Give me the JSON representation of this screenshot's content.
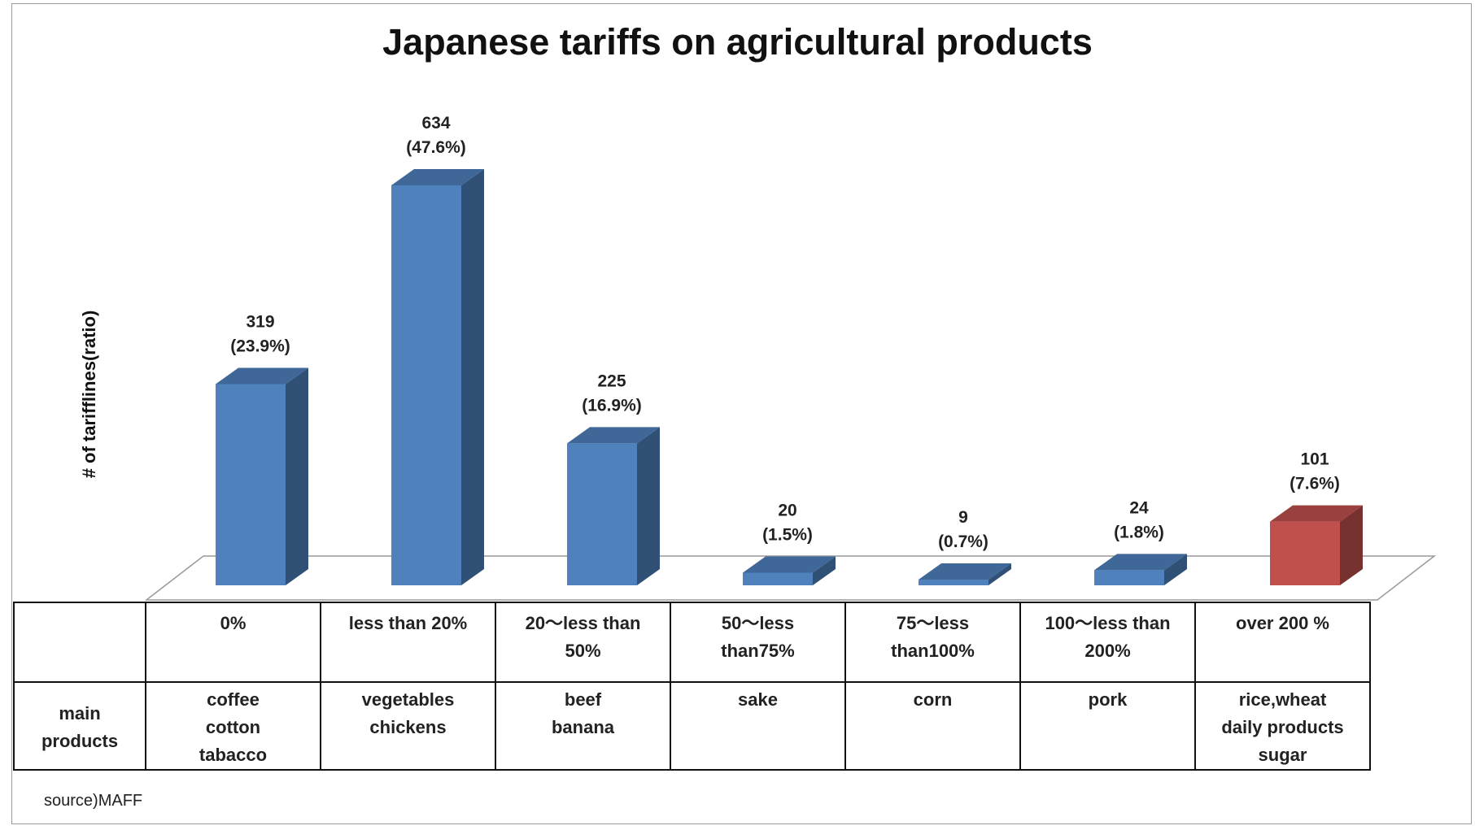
{
  "chart_data": {
    "type": "bar",
    "title": "Japanese tariffs on agricultural products",
    "ylabel": "# of tarifflines(ratio)",
    "categories": [
      "0%",
      "less than 20%",
      "20～less than 50%",
      "50～less than75%",
      "75～less than100%",
      "100～less than 200%",
      "over 200 %"
    ],
    "values": [
      319,
      634,
      225,
      20,
      9,
      24,
      101
    ],
    "data_labels": [
      [
        "319",
        "(23.9%)"
      ],
      [
        "634",
        "(47.6%)"
      ],
      [
        "225",
        "(16.9%)"
      ],
      [
        "20",
        "(1.5%)"
      ],
      [
        "9",
        "(0.7%)"
      ],
      [
        "24",
        "(1.8%)"
      ],
      [
        "101",
        "(7.6%)"
      ]
    ],
    "colors": [
      "#4f81bd",
      "#4f81bd",
      "#4f81bd",
      "#4f81bd",
      "#4f81bd",
      "#4f81bd",
      "#c0504d"
    ],
    "ylim": [
      0,
      634
    ],
    "grid": false,
    "legend": "none"
  },
  "table": {
    "header_cells": [
      [
        "",
        ""
      ],
      [
        "0%",
        ""
      ],
      [
        "less than 20%",
        ""
      ],
      [
        "20～less than",
        "50%"
      ],
      [
        "50～less",
        "than75%"
      ],
      [
        "75～less",
        "than100%"
      ],
      [
        "100～less than",
        "200%"
      ],
      [
        "over 200 %",
        ""
      ]
    ],
    "row_label": [
      "main",
      "products"
    ],
    "products": [
      [
        "coffee",
        "cotton",
        "tabacco"
      ],
      [
        "vegetables",
        "chickens",
        ""
      ],
      [
        "beef",
        "banana",
        ""
      ],
      [
        "sake",
        "",
        ""
      ],
      [
        "corn",
        "",
        ""
      ],
      [
        "pork",
        "",
        ""
      ],
      [
        "rice,wheat",
        "daily products",
        "sugar"
      ]
    ]
  },
  "source": "source)MAFF"
}
